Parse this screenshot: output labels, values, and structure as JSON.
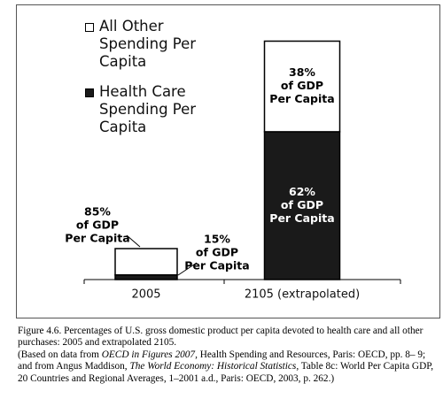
{
  "chart_data": {
    "type": "stacked-bar",
    "categories": [
      "2005",
      "2105 (extrapolated)"
    ],
    "relative_sizes": [
      1,
      7.7
    ],
    "series": [
      {
        "name": "All Other Spending Per Capita",
        "color": "#ffffff",
        "values": [
          85,
          38
        ],
        "value_labels": [
          "85%",
          "38%"
        ]
      },
      {
        "name": "Health Care Spending Per Capita",
        "color": "#1a1a1a",
        "values": [
          15,
          62
        ],
        "value_labels": [
          "15%",
          "62%"
        ]
      }
    ],
    "value_label_lines": [
      "of GDP",
      "Per Capita"
    ]
  },
  "caption": {
    "paragraphs": [
      [
        {
          "text": "Figure 4.6. Percentages of U.S. gross domestic product per capita devoted to health care and all other purchases: 2005 and extrapolated 2105."
        }
      ],
      [
        {
          "text": "(Based on data from "
        },
        {
          "text": "OECD in Figures 2007,",
          "italic": true
        },
        {
          "text": " Health Spending and Resources, Paris: OECD, pp. 8– 9; and from Angus Maddison, "
        },
        {
          "text": "The World Economy: Historical Statistics,",
          "italic": true
        },
        {
          "text": " Table 8c: World Per Capita GDP, 20 Countries and Regional Averages, 1–2001 a.d., Paris: OECD, 2003, p. 262.)"
        }
      ]
    ]
  }
}
